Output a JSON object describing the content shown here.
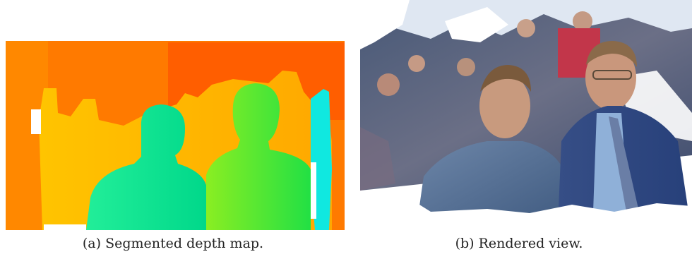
{
  "figure": {
    "panel_a": {
      "caption": "(a) Segmented depth map."
    },
    "panel_b": {
      "caption": "(b) Rendered view."
    }
  },
  "colors": {
    "depth_far": "#ff6a00",
    "depth_far_2": "#ff8a00",
    "depth_mid": "#ffb300",
    "depth_near_green": "#55ee22",
    "depth_near_teal": "#00e8a0",
    "depth_cyan": "#10e8e0",
    "photo_bg_blue": "#5c7aa8",
    "photo_sky": "#dfe7f2"
  }
}
